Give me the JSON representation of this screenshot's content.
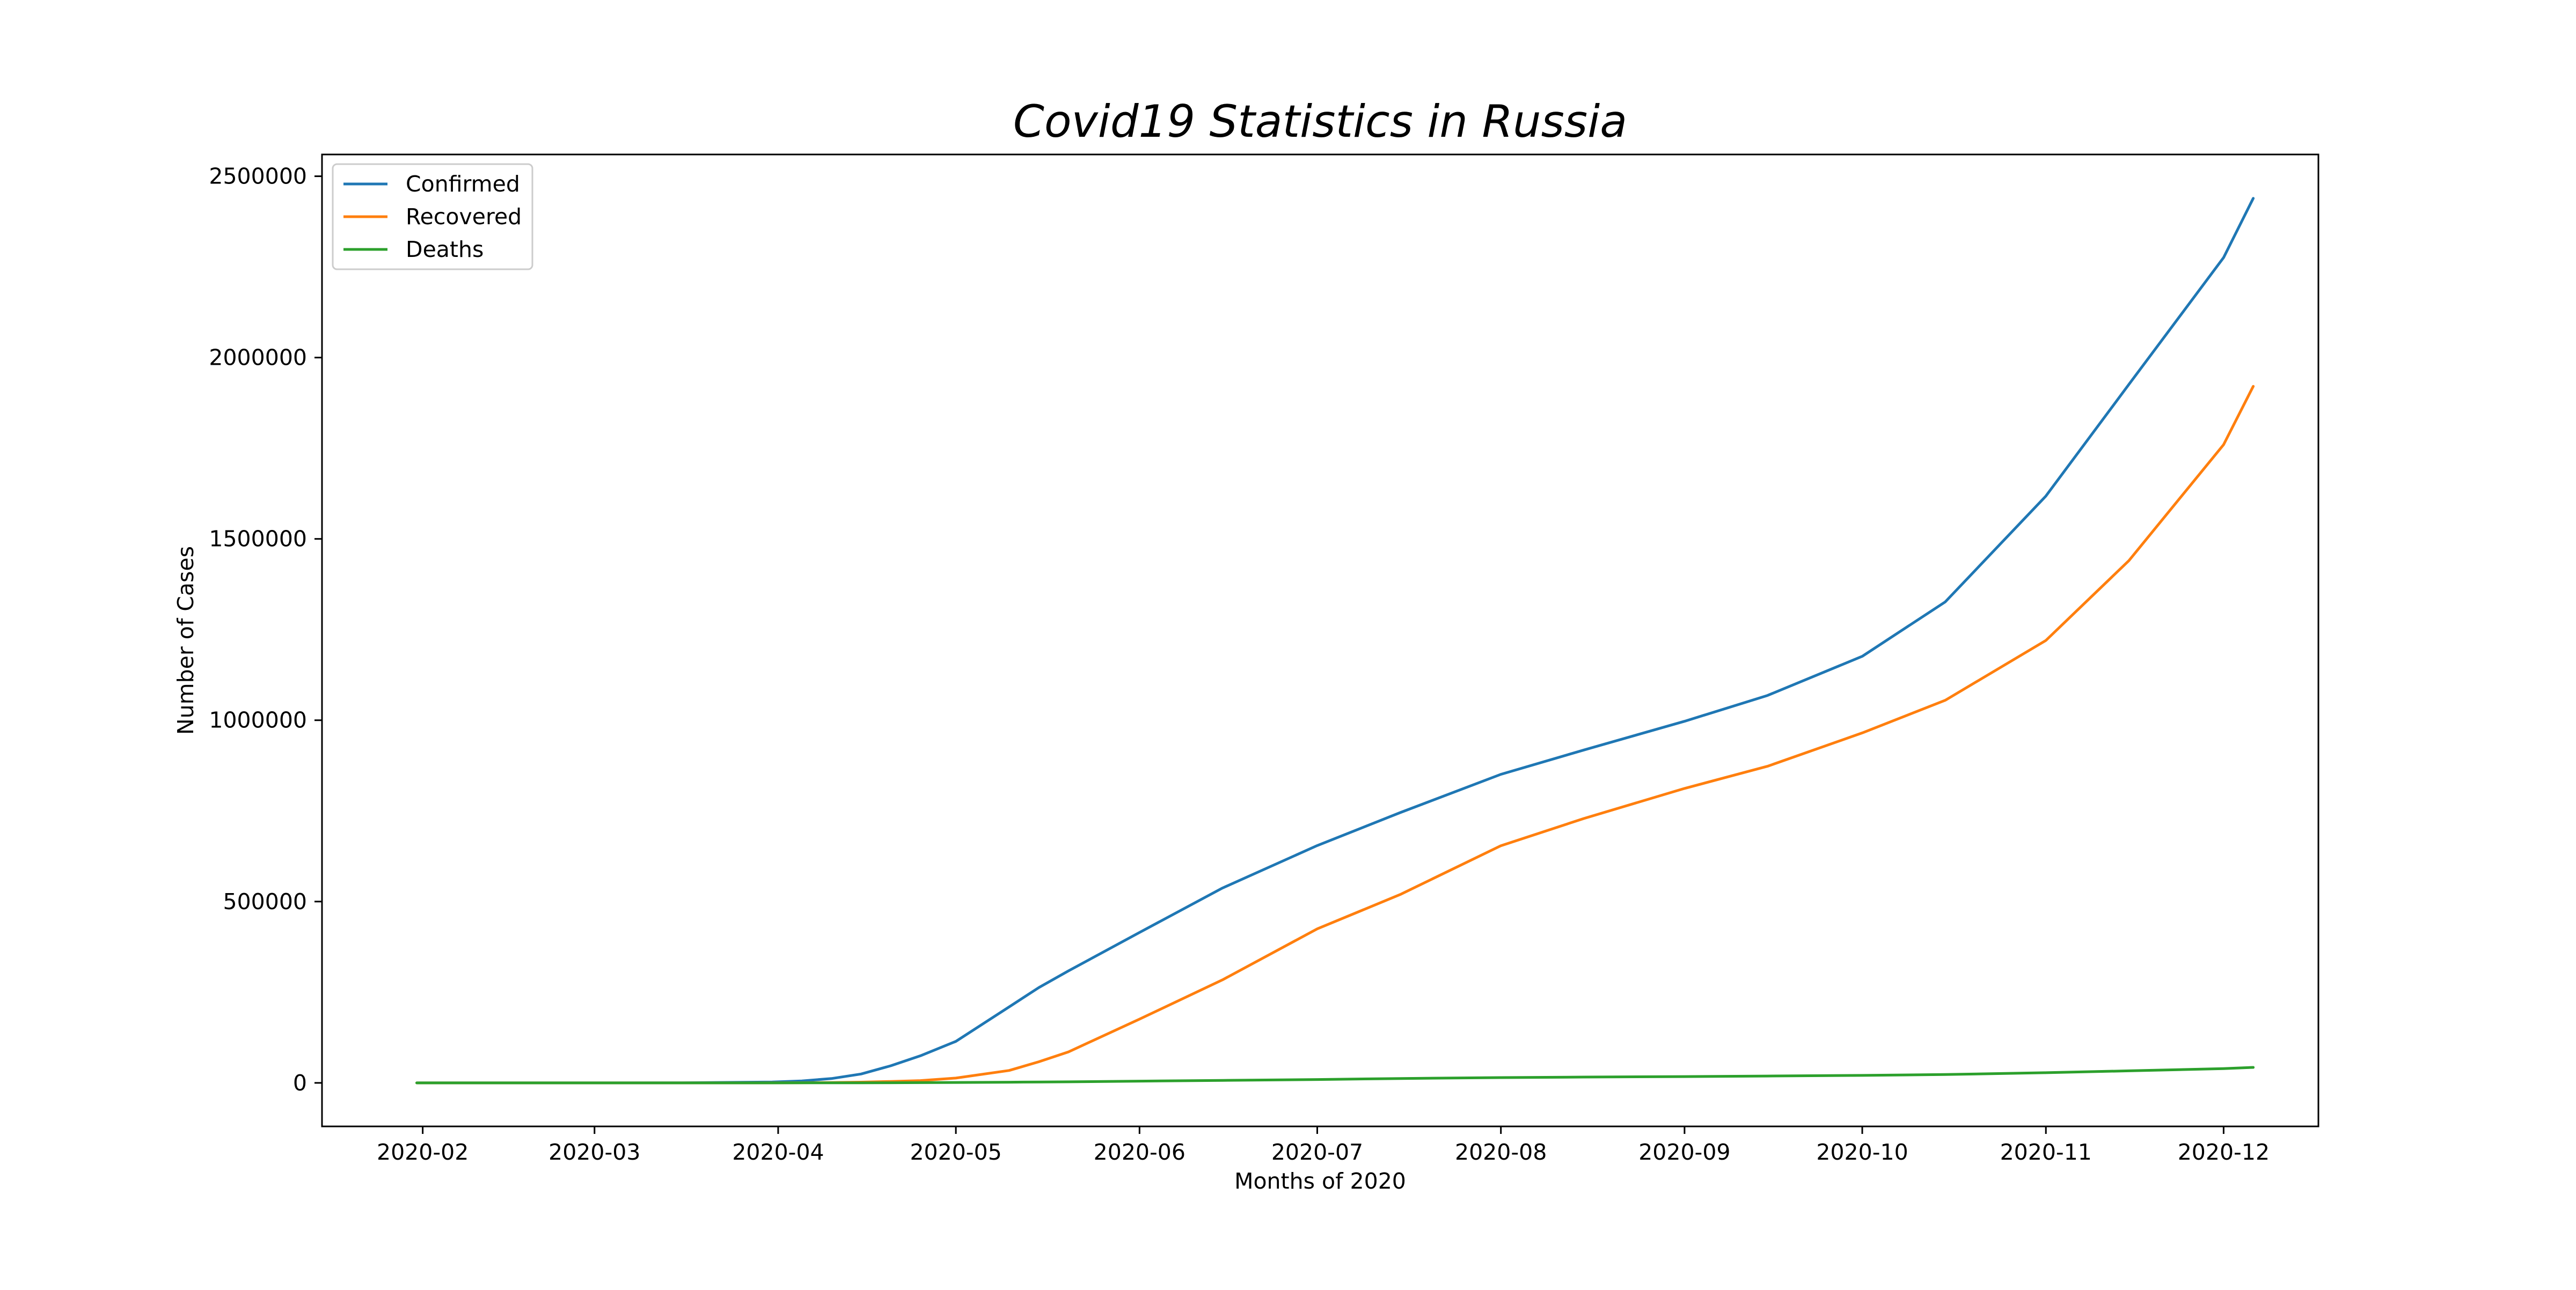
{
  "chart_data": {
    "type": "line",
    "title": "Covid19 Statistics in Russia",
    "xlabel": "Months of 2020",
    "ylabel": "Number of Cases",
    "xlim": [
      "2020-01-15",
      "2020-12-17"
    ],
    "ylim": [
      -120000,
      2560000
    ],
    "x_ticks": [
      "2020-02",
      "2020-03",
      "2020-04",
      "2020-05",
      "2020-06",
      "2020-07",
      "2020-08",
      "2020-09",
      "2020-10",
      "2020-11",
      "2020-12"
    ],
    "y_ticks": [
      0,
      500000,
      1000000,
      1500000,
      2000000,
      2500000
    ],
    "y_tick_labels": [
      "0",
      "500000",
      "1000000",
      "1500000",
      "2000000",
      "2500000"
    ],
    "grid": false,
    "legend": "upper-left",
    "x": [
      "2020-01-31",
      "2020-03-15",
      "2020-03-31",
      "2020-04-05",
      "2020-04-10",
      "2020-04-15",
      "2020-04-20",
      "2020-04-25",
      "2020-05-01",
      "2020-05-10",
      "2020-05-15",
      "2020-05-20",
      "2020-06-01",
      "2020-06-15",
      "2020-07-01",
      "2020-07-15",
      "2020-08-01",
      "2020-08-15",
      "2020-09-01",
      "2020-09-15",
      "2020-10-01",
      "2020-10-15",
      "2020-11-01",
      "2020-11-15",
      "2020-12-01",
      "2020-12-06"
    ],
    "series": [
      {
        "name": "Confirmed",
        "color": "#1f77b4",
        "values": [
          2,
          63,
          2337,
          5389,
          11917,
          24490,
          47121,
          74588,
          114431,
          209688,
          262843,
          308705,
          414878,
          537210,
          654405,
          745197,
          850870,
          917884,
          997072,
          1068320,
          1176286,
          1326178,
          1618116,
          1925825,
          2275936,
          2439163
        ]
      },
      {
        "name": "Recovered",
        "color": "#ff7f0e",
        "values": [
          0,
          5,
          121,
          355,
          1045,
          1986,
          3873,
          6250,
          13220,
          34306,
          58226,
          85392,
          175877,
          284021,
          424754,
          519399,
          654000,
          729000,
          812000,
          873000,
          965000,
          1055000,
          1220000,
          1440000,
          1760000,
          1920744
        ]
      },
      {
        "name": "Deaths",
        "color": "#2ca02c",
        "values": [
          0,
          0,
          17,
          47,
          94,
          198,
          405,
          681,
          1169,
          1915,
          2418,
          2972,
          4855,
          6829,
          9320,
          12075,
          14606,
          16119,
          17354,
          18907,
          20722,
          22966,
          27990,
          33186,
          39491,
          42684
        ]
      }
    ]
  }
}
